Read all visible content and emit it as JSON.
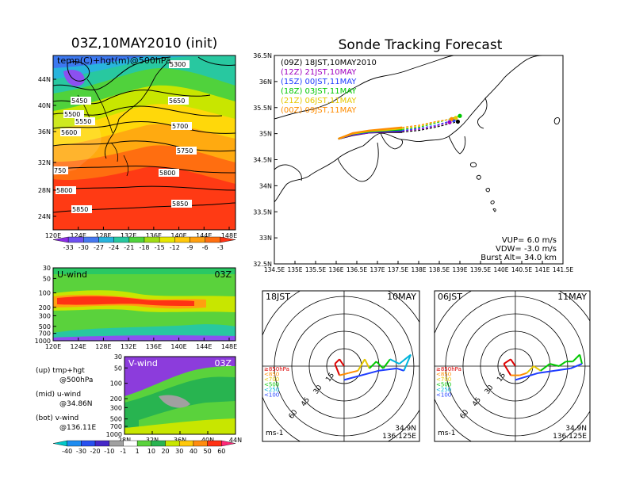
{
  "left": {
    "title": "03Z,10MAY2010 (init)",
    "map_label": "temp(C)+hgt(m)@500hPa",
    "x_ticks": [
      "120E",
      "124E",
      "128E",
      "132E",
      "136E",
      "140E",
      "144E",
      "148E"
    ],
    "y_ticks": [
      "44N",
      "40N",
      "36N",
      "32N",
      "28N",
      "24N"
    ],
    "contours": [
      "5300",
      "5450",
      "5500",
      "5550",
      "5600",
      "5650",
      "5700",
      "5750",
      "5800",
      "5850"
    ],
    "contour_prefix": [
      "750",
      "5800",
      "5850"
    ],
    "temp_scale": [
      "-33",
      "-30",
      "-27",
      "-24",
      "-21",
      "-18",
      "-15",
      "-12",
      "-9",
      "-6",
      "-3"
    ],
    "u_panel": {
      "label": "U-wind",
      "time": "03Z",
      "p_ticks": [
        "30",
        "50",
        "100",
        "200",
        "300",
        "500",
        "700",
        "1000"
      ],
      "x_ticks": [
        "120E",
        "124E",
        "128E",
        "132E",
        "136E",
        "140E",
        "144E",
        "148E"
      ]
    },
    "v_panel": {
      "label": "V-wind",
      "time": "03Z",
      "p_ticks": [
        "30",
        "50",
        "100",
        "200",
        "300",
        "500",
        "700",
        "1000"
      ],
      "x_ticks": [
        "28N",
        "32N",
        "36N",
        "40N",
        "44N"
      ]
    },
    "legend": [
      [
        "(up) tmp+hgt",
        "@500hPa"
      ],
      [
        "(mid) u-wind",
        "@34.86N"
      ],
      [
        "(bot) v-wind",
        "@136.11E"
      ]
    ],
    "wind_scale": [
      "-40",
      "-30",
      "-20",
      "-10",
      "-1",
      "1",
      "10",
      "20",
      "30",
      "40",
      "50",
      "60"
    ]
  },
  "right": {
    "title": "Sonde Tracking Forecast",
    "legend": [
      {
        "label": "(09Z)  18JST,10MAY2010",
        "color": "#000000"
      },
      {
        "label": "(12Z)  21JST,10MAY",
        "color": "#a000c0"
      },
      {
        "label": "(15Z)  00JST,11MAY",
        "color": "#1e3cff"
      },
      {
        "label": "(18Z)  03JST,11MAY",
        "color": "#00c800"
      },
      {
        "label": "(21Z)  06JST,11MAY",
        "color": "#e6c800"
      },
      {
        "label": "(00Z)  09JST,11MAY",
        "color": "#ff8c00"
      }
    ],
    "y_ticks": [
      "36.5N",
      "36N",
      "35.5N",
      "35N",
      "34.5N",
      "34N",
      "33.5N",
      "33N",
      "32.5N"
    ],
    "x_ticks": [
      "134.5E",
      "135E",
      "135.5E",
      "136E",
      "136.5E",
      "137E",
      "137.5E",
      "138E",
      "138.5E",
      "139E",
      "139.5E",
      "140E",
      "140.5E",
      "141E",
      "141.5E"
    ],
    "params": [
      "VUP=  6.0  m/s",
      "VDW= -3.0  m/s",
      "Burst Alt= 34.0  km"
    ]
  },
  "hodo": [
    {
      "time": "18JST",
      "date": "10MAY",
      "lat": "34.9N",
      "lon": "136.125E",
      "unit": "ms-1",
      "ring_labels": [
        "15",
        "30",
        "45",
        "60"
      ],
      "levels": [
        {
          "label": "≥850hPa",
          "color": "#dc0000"
        },
        {
          "label": "<850",
          "color": "#ff8c00"
        },
        {
          "label": "<700",
          "color": "#e6c800"
        },
        {
          "label": "<500",
          "color": "#00c800"
        },
        {
          "label": "<250",
          "color": "#00b4dc"
        },
        {
          "label": "<100",
          "color": "#1e3cff"
        }
      ]
    },
    {
      "time": "06JST",
      "date": "11MAY",
      "lat": "34.9N",
      "lon": "136.125E",
      "unit": "ms-1",
      "ring_labels": [
        "15",
        "30",
        "45",
        "60"
      ],
      "levels": [
        {
          "label": "≥850hPa",
          "color": "#dc0000"
        },
        {
          "label": "<850",
          "color": "#ff8c00"
        },
        {
          "label": "<700",
          "color": "#e6c800"
        },
        {
          "label": "<500",
          "color": "#00c800"
        },
        {
          "label": "<250",
          "color": "#00b4dc"
        },
        {
          "label": "<100",
          "color": "#1e3cff"
        }
      ]
    }
  ],
  "chart_data": [
    {
      "type": "heatmap",
      "title": "03Z,10MAY2010 (init)",
      "subtitle": "temp(C)+hgt(m)@500hPa",
      "xlim": [
        120,
        150
      ],
      "ylim": [
        22,
        48
      ],
      "colorbar": [
        -33,
        -30,
        -27,
        -24,
        -21,
        -18,
        -15,
        -12,
        -9,
        -6,
        -3
      ],
      "contour_levels": [
        5300,
        5450,
        5500,
        5550,
        5600,
        5650,
        5700,
        5750,
        5800,
        5850
      ]
    },
    {
      "type": "heatmap",
      "title": "U-wind",
      "subtitle": "03Z",
      "xlim": [
        120,
        150
      ],
      "ylim": [
        1000,
        30
      ]
    },
    {
      "type": "heatmap",
      "title": "V-wind",
      "subtitle": "03Z",
      "xlim": [
        28,
        44
      ],
      "ylim": [
        1000,
        30
      ],
      "colorbar": [
        -40,
        -30,
        -20,
        -10,
        -1,
        1,
        10,
        20,
        30,
        40,
        50,
        60
      ]
    },
    {
      "type": "line",
      "title": "Sonde Tracking Forecast",
      "xlim": [
        134.5,
        141.5
      ],
      "ylim": [
        32.5,
        36.5
      ],
      "series": [
        {
          "name": "(09Z)  18JST,10MAY2010",
          "x": [
            136.05,
            136.4,
            136.8,
            137.2,
            137.6,
            138.0,
            138.4,
            138.8,
            138.95
          ],
          "y": [
            34.9,
            34.97,
            35.02,
            35.03,
            35.03,
            35.06,
            35.12,
            35.2,
            35.23
          ]
        },
        {
          "name": "(12Z)  21JST,10MAY",
          "x": [
            136.05,
            136.4,
            136.8,
            137.2,
            137.6,
            138.0,
            138.4,
            138.75
          ],
          "y": [
            34.9,
            34.98,
            35.02,
            35.04,
            35.05,
            35.08,
            35.14,
            35.22
          ]
        },
        {
          "name": "(15Z)  00JST,11MAY",
          "x": [
            136.05,
            136.4,
            136.8,
            137.2,
            137.6,
            138.0,
            138.4,
            138.85
          ],
          "y": [
            34.9,
            34.99,
            35.03,
            35.05,
            35.06,
            35.1,
            35.16,
            35.26
          ]
        },
        {
          "name": "(18Z)  03JST,11MAY",
          "x": [
            136.05,
            136.4,
            136.8,
            137.2,
            137.6,
            138.0,
            138.4,
            139.0
          ],
          "y": [
            34.9,
            35.0,
            35.04,
            35.06,
            35.08,
            35.12,
            35.2,
            35.34
          ]
        },
        {
          "name": "(21Z)  06JST,11MAY",
          "x": [
            136.05,
            136.4,
            136.8,
            137.2,
            137.6,
            138.0,
            138.4,
            138.9
          ],
          "y": [
            34.9,
            35.0,
            35.05,
            35.07,
            35.1,
            35.14,
            35.22,
            35.3
          ]
        },
        {
          "name": "(00Z)  09JST,11MAY",
          "x": [
            136.05,
            136.4,
            136.8,
            137.2,
            137.6,
            138.0,
            138.4,
            138.8
          ],
          "y": [
            34.9,
            35.01,
            35.06,
            35.09,
            35.12,
            35.16,
            35.23,
            35.28
          ]
        }
      ]
    }
  ]
}
